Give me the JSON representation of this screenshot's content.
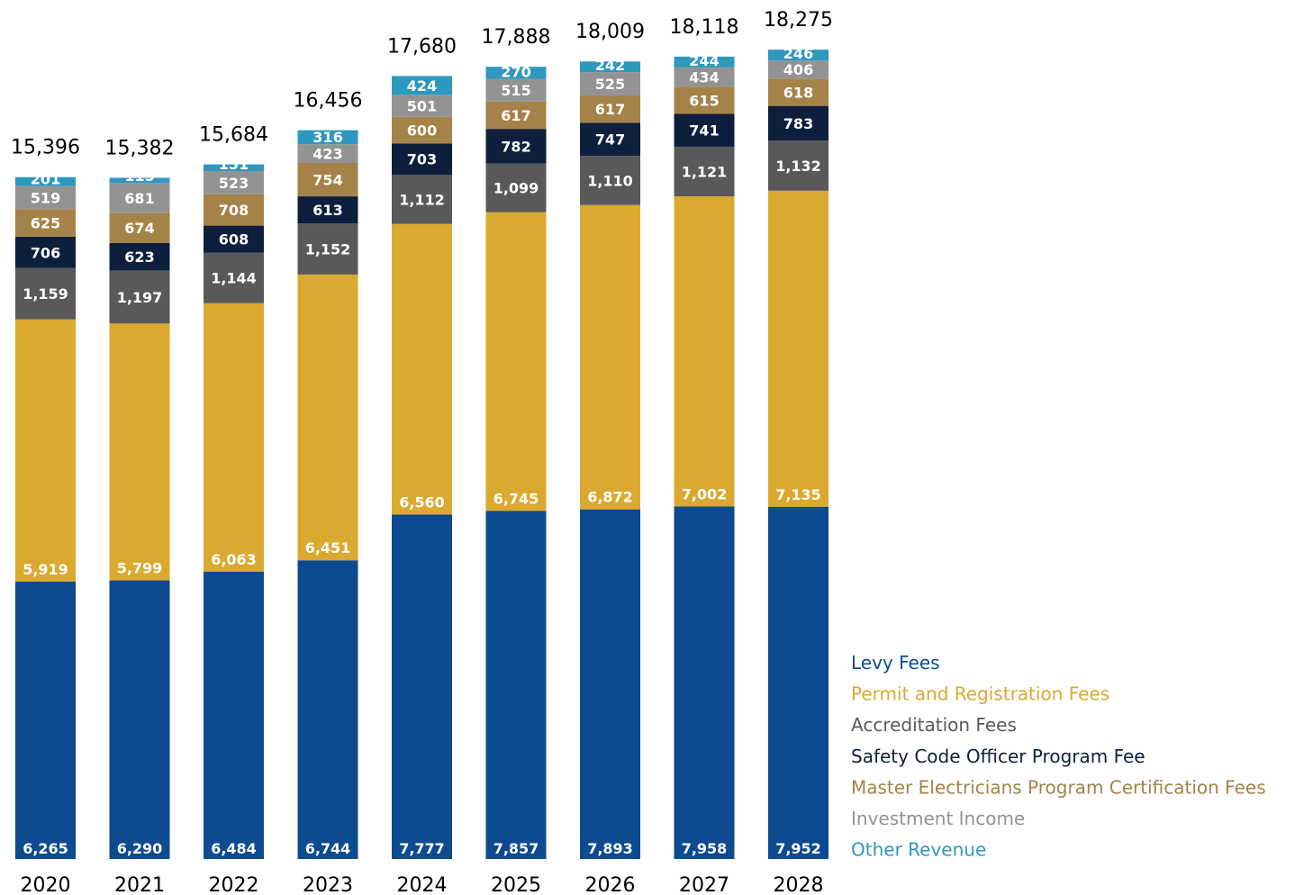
{
  "chart_data": {
    "type": "bar",
    "stacked": true,
    "categories": [
      "2020",
      "2021",
      "2022",
      "2023",
      "2024",
      "2025",
      "2026",
      "2027",
      "2028"
    ],
    "totals": [
      15396,
      15382,
      15684,
      16456,
      17680,
      17888,
      18009,
      18118,
      18275
    ],
    "totals_labels": [
      "15,396",
      "15,382",
      "15,684",
      "16,456",
      "17,680",
      "17,888",
      "18,009",
      "18,118",
      "18,275"
    ],
    "series": [
      {
        "name": "Levy Fees",
        "color": "#0e4a8f",
        "values": [
          6265,
          6290,
          6484,
          6744,
          7777,
          7857,
          7893,
          7958,
          7952
        ],
        "labels": [
          "6,265",
          "6,290",
          "6,484",
          "6,744",
          "7,777",
          "7,857",
          "7,893",
          "7,958",
          "7,952"
        ]
      },
      {
        "name": "Permit and Registration Fees",
        "color": "#dba92f",
        "values": [
          5919,
          5799,
          6063,
          6451,
          6560,
          6745,
          6872,
          7002,
          7135
        ],
        "labels": [
          "5,919",
          "5,799",
          "6,063",
          "6,451",
          "6,560",
          "6,745",
          "6,872",
          "7,002",
          "7,135"
        ]
      },
      {
        "name": "Accreditation Fees",
        "color": "#58595b",
        "values": [
          1159,
          1197,
          1144,
          1152,
          1112,
          1099,
          1110,
          1121,
          1132
        ],
        "labels": [
          "1,159",
          "1,197",
          "1,144",
          "1,152",
          "1,112",
          "1,099",
          "1,110",
          "1,121",
          "1,132"
        ]
      },
      {
        "name": "Safety Code Officer Program Fee",
        "color": "#0d1f3c",
        "values": [
          706,
          623,
          608,
          613,
          703,
          782,
          747,
          741,
          783
        ],
        "labels": [
          "706",
          "623",
          "608",
          "613",
          "703",
          "782",
          "747",
          "741",
          "783"
        ]
      },
      {
        "name": "Master Electricians Program Certification Fees",
        "color": "#a58248",
        "values": [
          625,
          674,
          708,
          754,
          600,
          617,
          617,
          615,
          618
        ],
        "labels": [
          "625",
          "674",
          "708",
          "754",
          "600",
          "617",
          "617",
          "615",
          "618"
        ]
      },
      {
        "name": "Investment Income",
        "color": "#939393",
        "values": [
          519,
          681,
          523,
          423,
          501,
          515,
          525,
          434,
          406
        ],
        "labels": [
          "519",
          "681",
          "523",
          "423",
          "501",
          "515",
          "525",
          "434",
          "406"
        ]
      },
      {
        "name": "Other Revenue",
        "color": "#2e98bf",
        "values": [
          201,
          115,
          151,
          316,
          424,
          270,
          242,
          244,
          246
        ],
        "labels": [
          "201",
          "115",
          "151",
          "316",
          "424",
          "270",
          "242",
          "244",
          "246"
        ]
      }
    ],
    "title": "",
    "xlabel": "",
    "ylabel": "",
    "ylim": [
      0,
      18275
    ],
    "grid": false,
    "legend_position": "bottom-right"
  }
}
